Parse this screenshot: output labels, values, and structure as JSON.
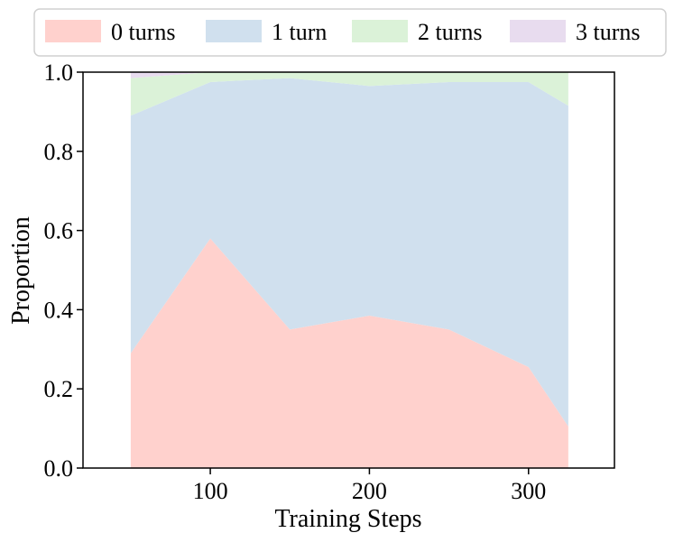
{
  "chart_data": {
    "type": "area",
    "stacked": true,
    "x": [
      50,
      100,
      150,
      200,
      250,
      300,
      325
    ],
    "series": [
      {
        "name": "0 turns",
        "color": "#ffd1cd",
        "values": [
          0.29,
          0.58,
          0.35,
          0.385,
          0.35,
          0.255,
          0.105
        ]
      },
      {
        "name": "1 turn",
        "color": "#d0e0ee",
        "values": [
          0.6,
          0.395,
          0.635,
          0.58,
          0.625,
          0.72,
          0.81
        ]
      },
      {
        "name": "2 turns",
        "color": "#dbf2d8",
        "values": [
          0.095,
          0.025,
          0.015,
          0.035,
          0.025,
          0.025,
          0.085
        ]
      },
      {
        "name": "3 turns",
        "color": "#e8dcef",
        "values": [
          0.015,
          0.0,
          0.0,
          0.0,
          0.0,
          0.0,
          0.0
        ]
      }
    ],
    "xlabel": "Training Steps",
    "ylabel": "Proportion",
    "xticks": [
      100,
      200,
      300
    ],
    "yticks": [
      "0.0",
      "0.2",
      "0.4",
      "0.6",
      "0.8",
      "1.0"
    ],
    "xlim": [
      20,
      354
    ],
    "ylim": [
      0,
      1.0
    ],
    "grid": false,
    "legend_position": "top"
  }
}
